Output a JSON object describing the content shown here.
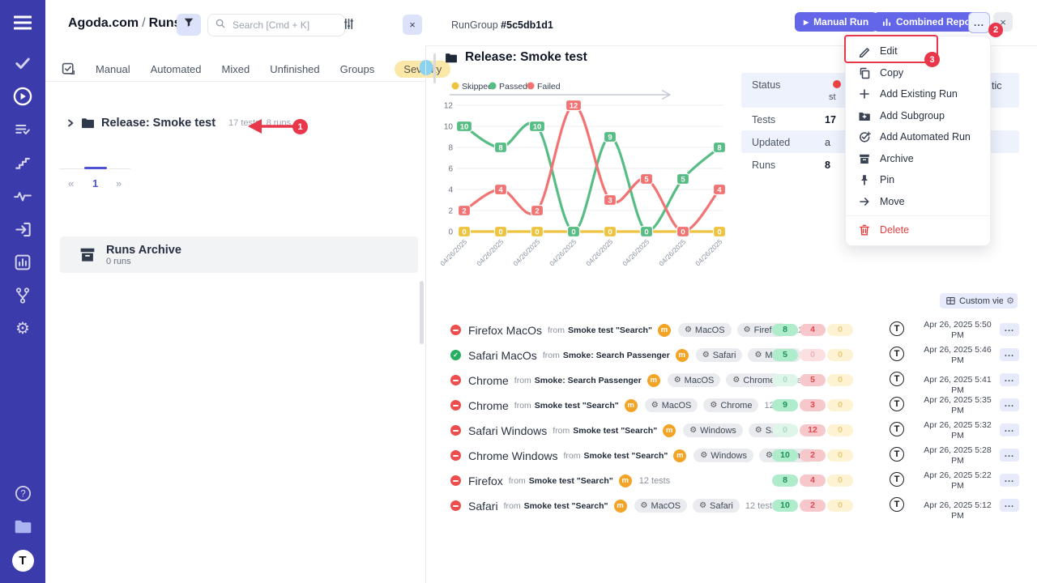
{
  "sidebar": {
    "icons": [
      "menu",
      "tasks",
      "runs",
      "suites",
      "steps",
      "analytics",
      "import",
      "reports",
      "branches",
      "settings",
      "help",
      "projects",
      "logo"
    ],
    "logo_letter": "T"
  },
  "left_panel": {
    "breadcrumb": {
      "project": "Agoda.com",
      "separator": "/",
      "section": "Runs"
    },
    "search": {
      "placeholder": "Search [Cmd + K]"
    },
    "tabs": {
      "items": [
        "Manual",
        "Automated",
        "Mixed",
        "Unfinished",
        "Groups"
      ],
      "severity": "Severity"
    },
    "tree": {
      "name": "Release: Smoke test",
      "tests_count": "17 tests",
      "runs_count": "8 runs"
    },
    "pagination": {
      "first": "«",
      "page": "1",
      "last": "»"
    },
    "archive": {
      "title": "Runs Archive",
      "count": "0 runs"
    }
  },
  "header": {
    "entity": "RunGroup",
    "id": "#5c5db1d1",
    "manual_run_label": "Manual Run",
    "combined_report_label": "Combined Report",
    "more_label": "...",
    "close_label": "×"
  },
  "group_title": "Release: Smoke test",
  "chart_data": {
    "type": "line",
    "x_labels": [
      "04/26/2025",
      "04/26/2025",
      "04/26/2025",
      "04/26/2025",
      "04/26/2025",
      "04/26/2025",
      "04/26/2025",
      "04/26/2025"
    ],
    "yticks": [
      0,
      2,
      4,
      6,
      8,
      10,
      12
    ],
    "ylim": [
      0,
      12
    ],
    "grid": true,
    "legend_position": "top",
    "series": [
      {
        "name": "Skipped",
        "color": "#edc33f",
        "values": [
          0,
          0,
          0,
          0,
          0,
          0,
          0,
          0
        ]
      },
      {
        "name": "Passed",
        "color": "#57bd84",
        "values": [
          10,
          8,
          10,
          0,
          9,
          0,
          5,
          8
        ]
      },
      {
        "name": "Failed",
        "color": "#f17373",
        "values": [
          2,
          4,
          2,
          12,
          3,
          5,
          0,
          4
        ]
      }
    ]
  },
  "details": {
    "rows": [
      {
        "label": "Status",
        "value": "",
        "fragment": "st"
      },
      {
        "label": "Tests",
        "value": "17"
      },
      {
        "label": "Updated",
        "value": "a"
      },
      {
        "label": "Runs",
        "value": "8"
      }
    ],
    "right_fragment": "tic"
  },
  "menu": {
    "items": [
      {
        "label": "Edit",
        "icon": "pencil"
      },
      {
        "label": "Copy",
        "icon": "copy"
      },
      {
        "label": "Add Existing Run",
        "icon": "plus"
      },
      {
        "label": "Add Subgroup",
        "icon": "folder-plus"
      },
      {
        "label": "Add Automated Run",
        "icon": "check-plus"
      },
      {
        "label": "Archive",
        "icon": "archive"
      },
      {
        "label": "Pin",
        "icon": "pin"
      },
      {
        "label": "Move",
        "icon": "arrow-right"
      },
      {
        "label": "Delete",
        "icon": "trash",
        "danger": true,
        "divider_before": true
      }
    ]
  },
  "runs_toolbar": {
    "custom_view_label": "Custom view"
  },
  "ui": {
    "from_label": "from",
    "m_badge": "m",
    "more_label": "..."
  },
  "runs": [
    {
      "status": "failed",
      "name": "Firefox MacOs",
      "from": "Smoke test \"Search\"",
      "tags": [
        "MacOS",
        "Firefox"
      ],
      "tests": "12 tests",
      "passed": "8",
      "failed": "4",
      "skipped": "0",
      "date": "Apr 26, 2025 5:50 PM",
      "date_wrap": true
    },
    {
      "status": "passed",
      "name": "Safari MacOs",
      "from": "Smoke: Search Passenger",
      "tags": [
        "Safari",
        "MacOS"
      ],
      "tests": "5 te",
      "passed": "5",
      "failed": "0",
      "skipped": "0",
      "date": "Apr 26, 2025 5:46 PM",
      "date_wrap": true
    },
    {
      "status": "failed",
      "name": "Chrome",
      "from": "Smoke: Search Passenger",
      "tags": [
        "MacOS",
        "Chrome"
      ],
      "tests": "5 tests",
      "passed": "0",
      "failed": "5",
      "skipped": "0",
      "date": "Apr 26, 2025 5:41 PM",
      "date_wrap": false
    },
    {
      "status": "failed",
      "name": "Chrome",
      "from": "Smoke test \"Search\"",
      "tags": [
        "MacOS",
        "Chrome"
      ],
      "tests": "12 tests",
      "passed": "9",
      "failed": "3",
      "skipped": "0",
      "date": "Apr 26, 2025 5:35 PM",
      "date_wrap": true
    },
    {
      "status": "failed",
      "name": "Safari Windows",
      "from": "Smoke test \"Search\"",
      "tags": [
        "Windows",
        "Safari"
      ],
      "tests": "12 te",
      "passed": "0",
      "failed": "12",
      "skipped": "0",
      "date": "Apr 26, 2025 5:32 PM",
      "date_wrap": true
    },
    {
      "status": "failed",
      "name": "Chrome Windows",
      "from": "Smoke test \"Search\"",
      "tags": [
        "Windows",
        "Chrome"
      ],
      "tests": "",
      "passed": "10",
      "failed": "2",
      "skipped": "0",
      "date": "Apr 26, 2025 5:28 PM",
      "date_wrap": true
    },
    {
      "status": "failed",
      "name": "Firefox",
      "from": "Smoke test \"Search\"",
      "tags": [],
      "tests": "12 tests",
      "passed": "8",
      "failed": "4",
      "skipped": "0",
      "date": "Apr 26, 2025 5:22 PM",
      "date_wrap": true
    },
    {
      "status": "failed",
      "name": "Safari",
      "from": "Smoke test \"Search\"",
      "tags": [
        "MacOS",
        "Safari"
      ],
      "tests": "12 tests",
      "passed": "10",
      "failed": "2",
      "skipped": "0",
      "date": "Apr 26, 2025 5:12 PM",
      "date_wrap": false
    }
  ],
  "annotations": {
    "step_1": "1",
    "step_2": "2",
    "step_3": "3"
  }
}
